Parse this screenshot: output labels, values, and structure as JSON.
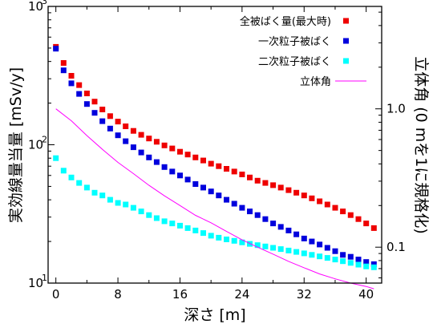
{
  "chart_data": {
    "type": "scatter",
    "xlabel": "深さ [m]",
    "ylabel": "実効線量当量 [mSv/y]",
    "y2label": "立体角 (0 mを1に規格化)",
    "xlim": [
      -1,
      42
    ],
    "ylim": [
      10,
      1000
    ],
    "yscale": "log",
    "y2lim": [
      0.055,
      5.5
    ],
    "y2scale": "log",
    "x_ticks": [
      "0",
      "8",
      "16",
      "24",
      "32",
      "40"
    ],
    "y_ticks": [
      "10",
      "10",
      "10"
    ],
    "y_tick_exponents": [
      "1",
      "2",
      "3"
    ],
    "y2_ticks": [
      "0.1",
      "1.0"
    ],
    "legend_position": "top-right",
    "series": [
      {
        "name": "全被ばく量(最大時)",
        "color": "#ee0000",
        "marker": "square",
        "x": [
          0,
          1,
          2,
          3,
          4,
          5,
          6,
          7,
          8,
          9,
          10,
          11,
          12,
          13,
          14,
          15,
          16,
          17,
          18,
          19,
          20,
          21,
          22,
          23,
          24,
          25,
          26,
          27,
          28,
          29,
          30,
          31,
          32,
          33,
          34,
          35,
          36,
          37,
          38,
          39,
          40,
          41
        ],
        "y": [
          510,
          390,
          315,
          270,
          235,
          205,
          180,
          161,
          147,
          136,
          126,
          118,
          111,
          105,
          99,
          94,
          89,
          85,
          81,
          77,
          73,
          70,
          67,
          64,
          61,
          58,
          55,
          53,
          51,
          49,
          47,
          45,
          43,
          41,
          39,
          37,
          35,
          33,
          31,
          29,
          27,
          25
        ]
      },
      {
        "name": "一次粒子被ばく",
        "color": "#0000dd",
        "marker": "square",
        "x": [
          0,
          1,
          2,
          3,
          4,
          5,
          6,
          7,
          8,
          9,
          10,
          11,
          12,
          13,
          14,
          15,
          16,
          17,
          18,
          19,
          20,
          21,
          22,
          23,
          24,
          25,
          26,
          27,
          28,
          29,
          30,
          31,
          32,
          33,
          34,
          35,
          36,
          37,
          38,
          39,
          40,
          41
        ],
        "y": [
          495,
          345,
          278,
          233,
          197,
          170,
          148,
          131,
          117,
          106,
          96,
          88,
          81,
          75,
          69,
          64,
          60,
          56,
          52,
          49,
          46,
          43,
          40,
          37.5,
          35,
          33,
          31,
          29,
          27,
          25.5,
          24,
          22.5,
          21,
          20,
          19,
          18,
          17,
          16,
          15.5,
          14.8,
          14.2,
          13.7
        ]
      },
      {
        "name": "二次粒子被ばく",
        "color": "#00ffff",
        "marker": "square",
        "x": [
          0,
          1,
          2,
          3,
          4,
          5,
          6,
          7,
          8,
          9,
          10,
          11,
          12,
          13,
          14,
          15,
          16,
          17,
          18,
          19,
          20,
          21,
          22,
          23,
          24,
          25,
          26,
          27,
          28,
          29,
          30,
          31,
          32,
          33,
          34,
          35,
          36,
          37,
          38,
          39,
          40,
          41
        ],
        "y": [
          80,
          65,
          58,
          53,
          49,
          45,
          43,
          40,
          38,
          37,
          35,
          33,
          31,
          29.5,
          28,
          27,
          26,
          25,
          24,
          23,
          22,
          21.3,
          20.7,
          20.2,
          19.7,
          19.2,
          18.8,
          18.4,
          18,
          17.6,
          17.2,
          16.8,
          16.4,
          16,
          15.6,
          15.2,
          14.8,
          14.4,
          14,
          13.6,
          13.2,
          13
        ]
      },
      {
        "name": "立体角",
        "color": "#ff00ff",
        "marker": "line",
        "axis": "y2",
        "x": [
          0,
          2,
          4,
          6,
          8,
          10,
          12,
          14,
          16,
          18,
          20,
          22,
          24,
          26,
          28,
          30,
          32,
          34,
          36,
          38,
          40,
          41
        ],
        "y": [
          1.0,
          0.82,
          0.64,
          0.51,
          0.41,
          0.34,
          0.28,
          0.235,
          0.2,
          0.17,
          0.15,
          0.13,
          0.113,
          0.1,
          0.089,
          0.079,
          0.071,
          0.064,
          0.059,
          0.055,
          0.052,
          0.05
        ]
      }
    ]
  }
}
